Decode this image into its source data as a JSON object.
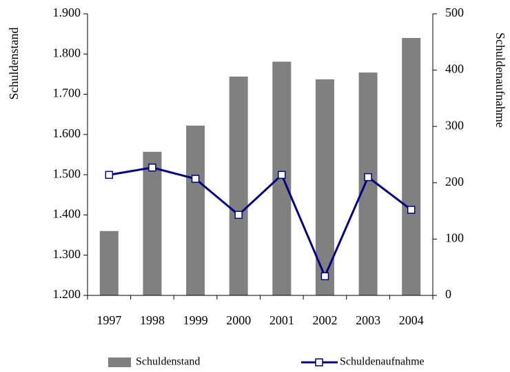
{
  "chart_data": {
    "type": "bar-line",
    "categories": [
      "1997",
      "1998",
      "1999",
      "2000",
      "2001",
      "2002",
      "2003",
      "2004"
    ],
    "series": [
      {
        "name": "Schuldenstand",
        "type": "bar",
        "color": "#808080",
        "axis": "y",
        "values": [
          1360,
          1557,
          1622,
          1744,
          1781,
          1737,
          1754,
          1840
        ]
      },
      {
        "name": "Schuldenaufnahme",
        "type": "line",
        "color": "#000080",
        "axis": "y2",
        "values": [
          214,
          227,
          207,
          143,
          214,
          34,
          210,
          152
        ]
      }
    ],
    "ylabel": "Schuldenstand",
    "y2label": "Schuldenaufnahme",
    "ylim": [
      1200,
      1900
    ],
    "yticks": [
      {
        "value": 1200,
        "label": "1.200"
      },
      {
        "value": 1300,
        "label": "1.300"
      },
      {
        "value": 1400,
        "label": "1.400"
      },
      {
        "value": 1500,
        "label": "1.500"
      },
      {
        "value": 1600,
        "label": "1.600"
      },
      {
        "value": 1700,
        "label": "1.700"
      },
      {
        "value": 1800,
        "label": "1.800"
      },
      {
        "value": 1900,
        "label": "1.900"
      }
    ],
    "y2lim": [
      0,
      500
    ],
    "y2ticks": [
      0,
      100,
      200,
      300,
      400,
      500
    ],
    "legend": "bottom"
  }
}
